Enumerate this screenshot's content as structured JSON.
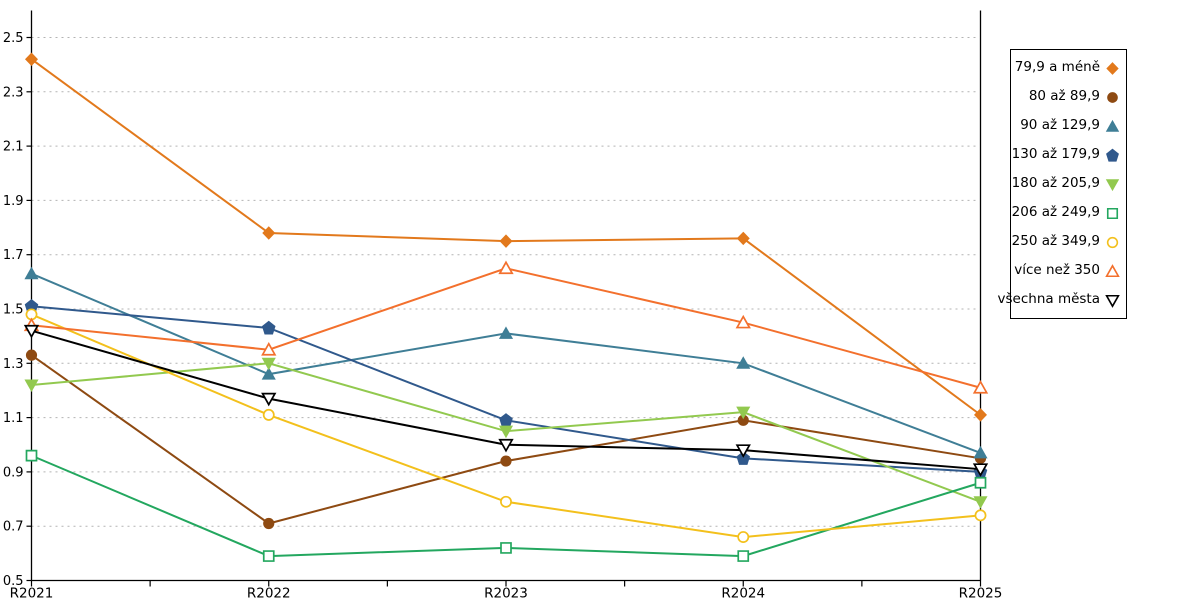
{
  "chart_data": {
    "type": "line",
    "title": "",
    "x_categories": [
      "R2021",
      "R2022",
      "R2023",
      "R2024",
      "R2025"
    ],
    "y_tick_labels": [
      "0.5",
      "0.7",
      "0.9",
      "1.1",
      "1.3",
      "1.5",
      "1.7",
      "1.9",
      "2.1",
      "2.3",
      "2.5"
    ],
    "ylim": [
      0.5,
      2.5
    ],
    "y_step": 0.2,
    "grid": "horizontal-dashed",
    "minor_x_ticks_between_categories": true,
    "legend_position": "right",
    "series": [
      {
        "name": "79,9 a méně",
        "marker": "diamond",
        "marker_style": "filled",
        "color": "#E2791C",
        "values": [
          2.42,
          1.78,
          1.75,
          1.76,
          1.11
        ]
      },
      {
        "name": "80 až 89,9",
        "marker": "circle",
        "marker_style": "filled",
        "color": "#8E4A12",
        "values": [
          1.33,
          0.71,
          0.94,
          1.09,
          0.95
        ]
      },
      {
        "name": "90 až 129,9",
        "marker": "triangle-up",
        "marker_style": "filled",
        "color": "#3F7E96",
        "values": [
          1.63,
          1.26,
          1.41,
          1.3,
          0.97
        ]
      },
      {
        "name": "130 až 179,9",
        "marker": "pentagon",
        "marker_style": "filled",
        "color": "#30598C",
        "values": [
          1.51,
          1.43,
          1.09,
          0.95,
          0.9
        ]
      },
      {
        "name": "180 až 205,9",
        "marker": "triangle-down",
        "marker_style": "filled",
        "color": "#92C94F",
        "values": [
          1.22,
          1.3,
          1.05,
          1.12,
          0.79
        ]
      },
      {
        "name": "206 až 249,9",
        "marker": "square",
        "marker_style": "open",
        "color": "#23A75F",
        "values": [
          0.96,
          0.59,
          0.62,
          0.59,
          0.86
        ]
      },
      {
        "name": "250 až 349,9",
        "marker": "circle",
        "marker_style": "open",
        "color": "#F3C01C",
        "values": [
          1.48,
          1.11,
          0.79,
          0.66,
          0.74
        ]
      },
      {
        "name": "více než 350",
        "marker": "triangle-up",
        "marker_style": "open",
        "color": "#F3702D",
        "values": [
          1.44,
          1.35,
          1.65,
          1.45,
          1.21
        ]
      },
      {
        "name": "všechna města",
        "marker": "triangle-down",
        "marker_style": "open",
        "color": "#000000",
        "values": [
          1.42,
          1.17,
          1.0,
          0.98,
          0.91
        ]
      }
    ]
  },
  "colors": {
    "background": "#ffffff",
    "axis": "#000000",
    "grid": "#b3b3b3",
    "tick_label": "#000000",
    "legend_border": "#000000"
  }
}
